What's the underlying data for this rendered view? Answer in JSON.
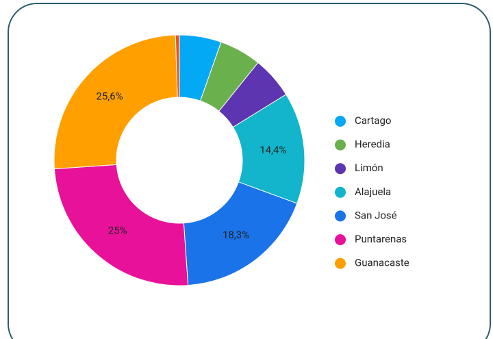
{
  "chart_data": {
    "type": "donut",
    "categories": [
      "Cartago",
      "Heredia",
      "Limón",
      "Alajuela",
      "San José",
      "Puntarenas",
      "Guanacaste",
      null
    ],
    "values": [
      5.4,
      5.4,
      5.4,
      14.4,
      18.3,
      25,
      25.6,
      0.5
    ],
    "value_labels": [
      null,
      null,
      null,
      "14,4%",
      "18,3%",
      "25%",
      "25,6%",
      null
    ],
    "colors": [
      "#03a9f4",
      "#6ab04c",
      "#5e35b1",
      "#12b5cb",
      "#1a73e8",
      "#e8119a",
      "#ffa000",
      "#f4511e"
    ],
    "legend": "right"
  }
}
